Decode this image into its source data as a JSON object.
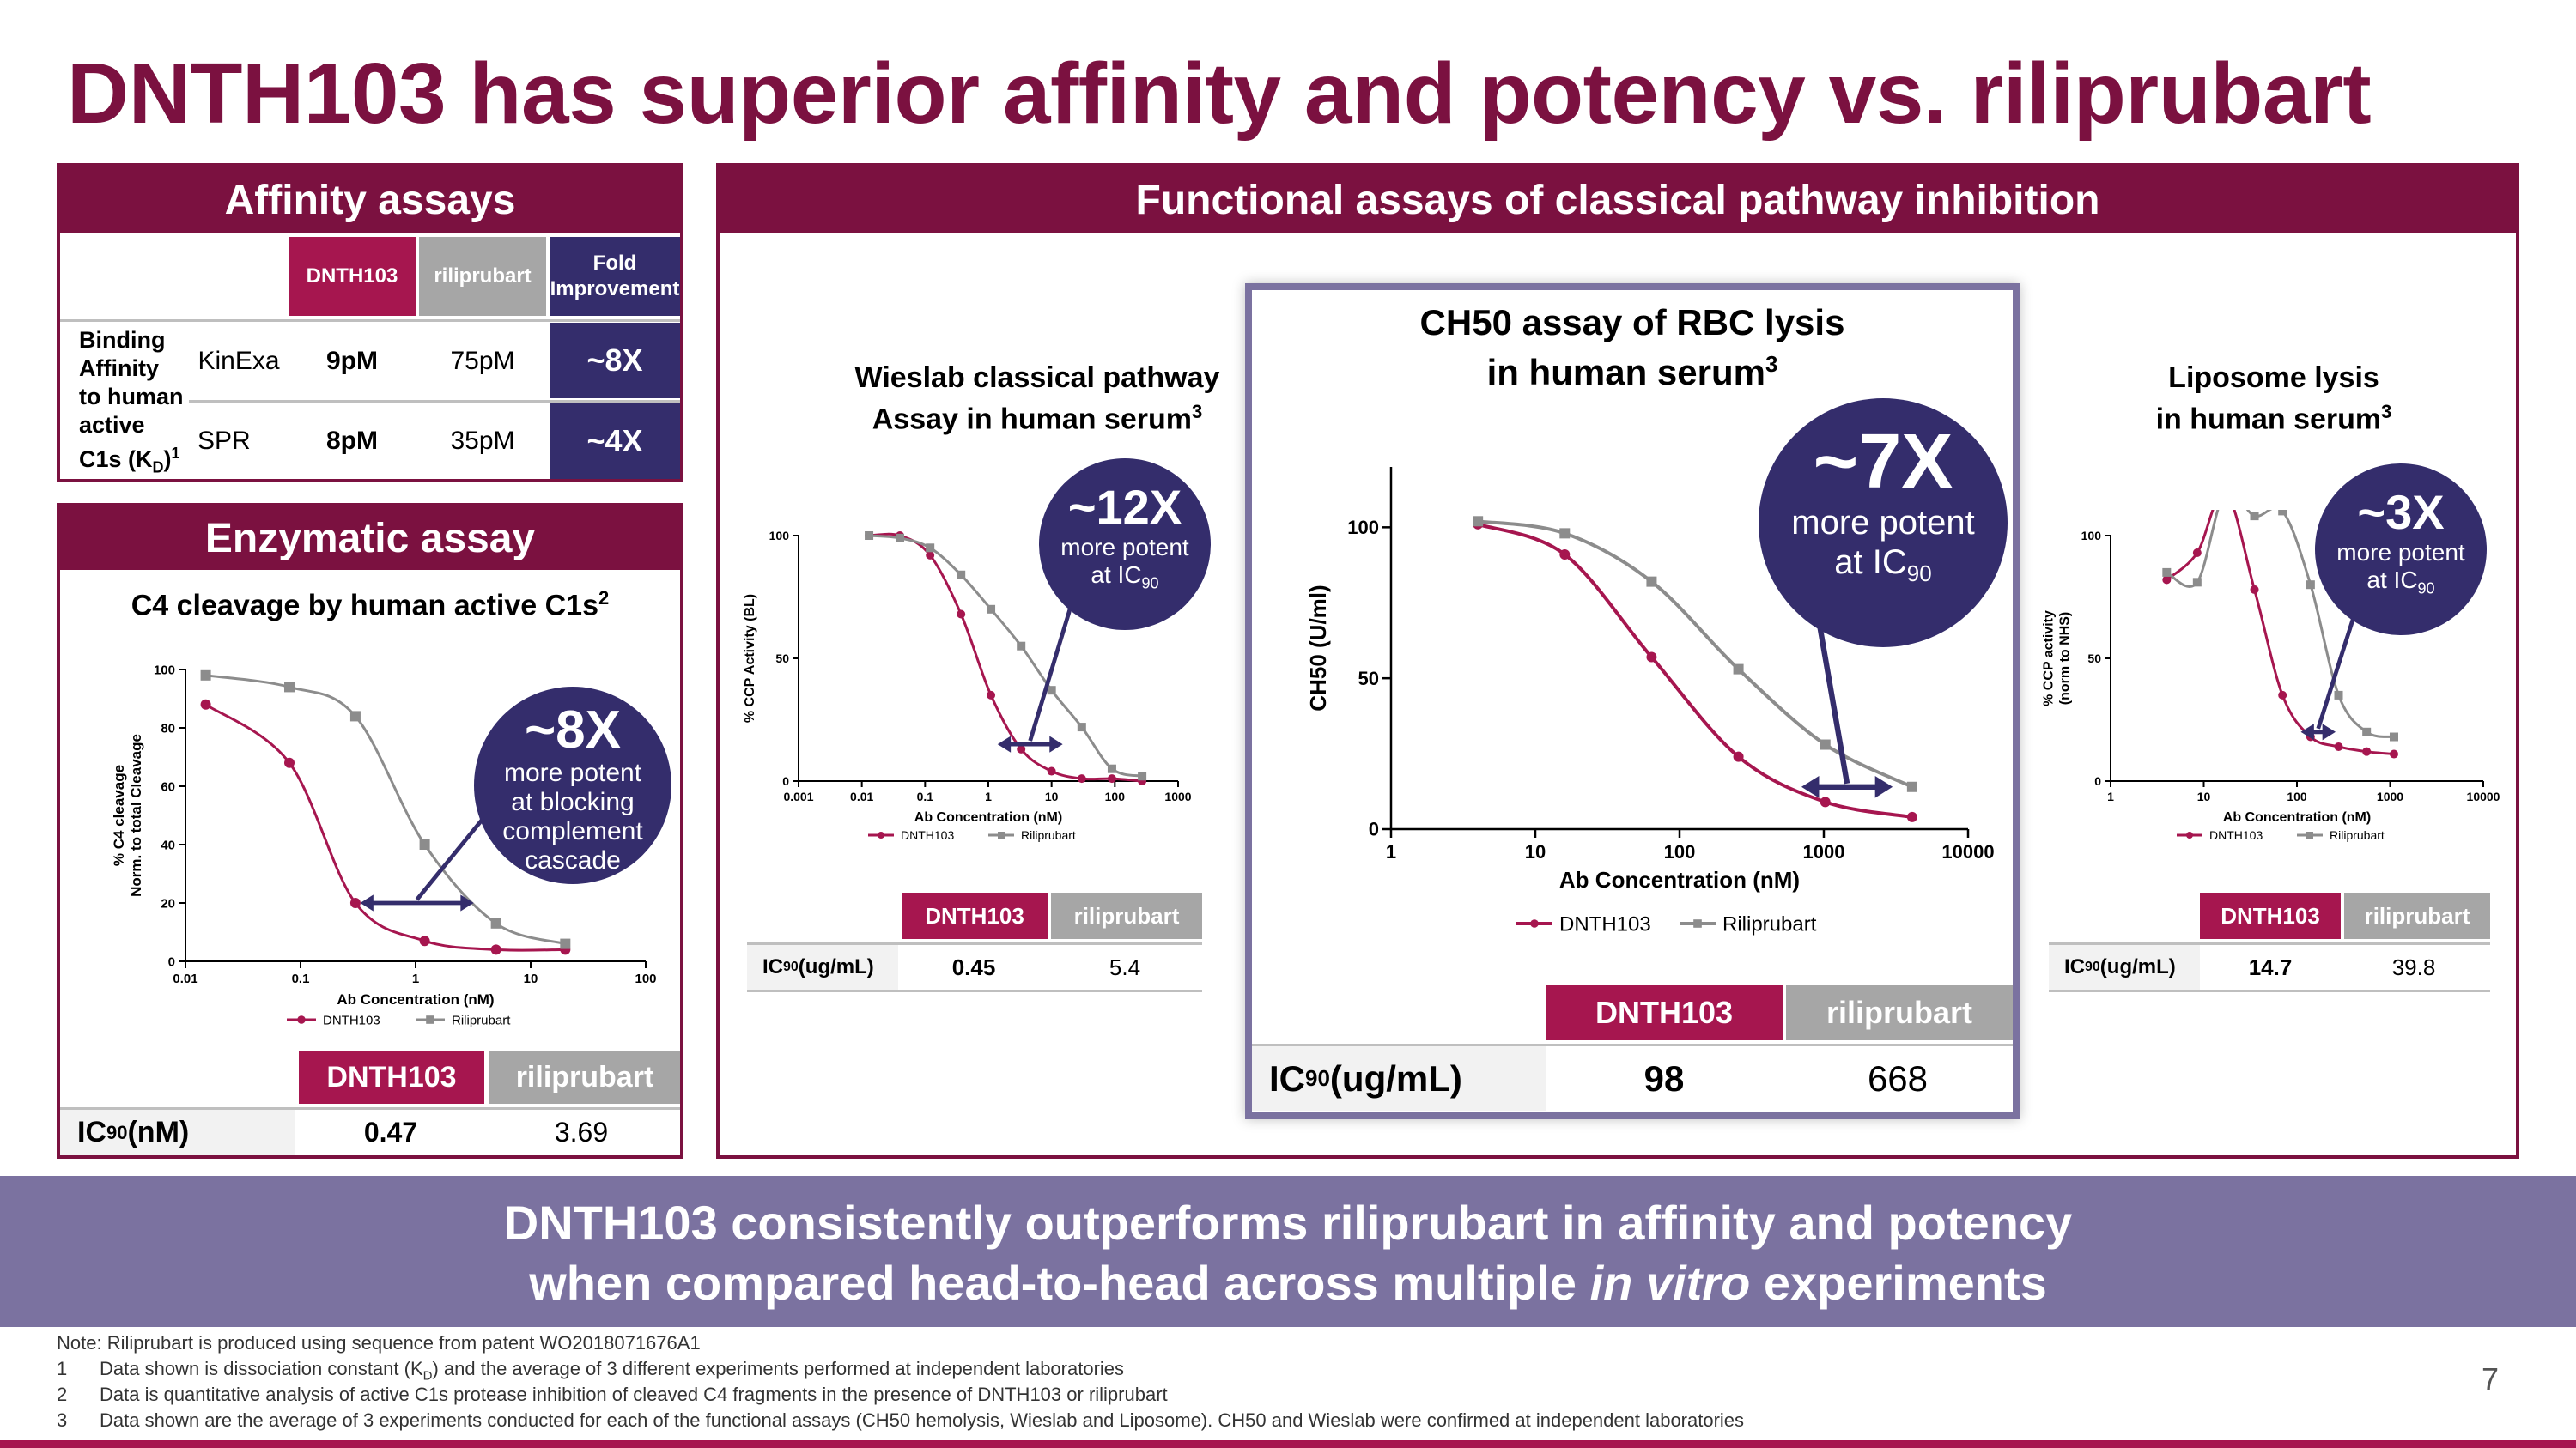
{
  "title": "DNTH103 has superior affinity and potency vs. riliprubart",
  "affinity": {
    "header": "Affinity assays",
    "col_dnth": "DNTH103",
    "col_rili": "riliprubart",
    "col_fold_1": "Fold",
    "col_fold_2": "Improvement",
    "row_label_lines": [
      "Binding",
      "Affinity",
      "to human",
      "active",
      "C1s (K"
    ],
    "row_label_sub": "D",
    "row_label_sup": "1",
    "row_label_close": ")",
    "rows": [
      {
        "method": "KinExa",
        "dnth": "9pM",
        "rili": "75pM",
        "fold": "~8X"
      },
      {
        "method": "SPR",
        "dnth": "8pM",
        "rili": "35pM",
        "fold": "~4X"
      }
    ]
  },
  "enzymatic": {
    "header": "Enzymatic assay",
    "subtitle": "C4 cleavage by human active C1s",
    "subtitle_sup": "2",
    "bubble_big": "~8X",
    "bubble_text": [
      "more potent",
      "at blocking",
      "complement",
      "cascade"
    ],
    "ic_label": "IC",
    "ic_sub": "90",
    "ic_unit": " (nM)",
    "col_dnth": "DNTH103",
    "col_rili": "riliprubart",
    "val_dnth": "0.47",
    "val_rili": "3.69"
  },
  "functional": {
    "header": "Functional assays of classical pathway inhibition",
    "wieslab": {
      "title_1": "Wieslab classical pathway",
      "title_2": "Assay in human serum",
      "title_sup": "3",
      "bubble_big": "~12X",
      "bubble_text_1": "more potent",
      "bubble_text_2": "at IC",
      "bubble_sub": "90",
      "ic_label": "IC",
      "ic_sub": "90",
      "ic_unit": " (ug/mL)",
      "col_dnth": "DNTH103",
      "col_rili": "riliprubart",
      "val_dnth": "0.45",
      "val_rili": "5.4"
    },
    "ch50": {
      "title_1": "CH50 assay of RBC lysis",
      "title_2": "in human serum",
      "title_sup": "3",
      "bubble_big": "~7X",
      "bubble_text_1": "more potent",
      "bubble_text_2": "at IC",
      "bubble_sub": "90",
      "ic_label": "IC",
      "ic_sub": "90",
      "ic_unit": " (ug/mL)",
      "col_dnth": "DNTH103",
      "col_rili": "riliprubart",
      "val_dnth": "98",
      "val_rili": "668"
    },
    "liposome": {
      "title_1": "Liposome lysis",
      "title_2": "in human serum",
      "title_sup": "3",
      "bubble_big": "~3X",
      "bubble_text_1": "more potent",
      "bubble_text_2": "at IC",
      "bubble_sub": "90",
      "ic_label": "IC",
      "ic_sub": "90",
      "ic_unit": " (ug/mL)",
      "col_dnth": "DNTH103",
      "col_rili": "riliprubart",
      "val_dnth": "14.7",
      "val_rili": "39.8"
    }
  },
  "banner": {
    "line1": "DNTH103 consistently outperforms riliprubart in affinity and potency",
    "line2_pre": "when compared head-to-head across multiple ",
    "line2_em": "in vitro",
    "line2_post": " experiments"
  },
  "footnotes": {
    "note": "Note: Riliprubart is produced using sequence from patent WO2018071676A1",
    "items": [
      {
        "num": "1",
        "pre": "Data shown is dissociation constant (K",
        "sub": "D",
        "post": ") and the average of 3 different experiments performed at independent laboratories"
      },
      {
        "num": "2",
        "pre": "Data is quantitative analysis of active C1s protease inhibition of cleaved C4 fragments in the presence of DNTH103 or riliprubart",
        "sub": "",
        "post": ""
      },
      {
        "num": "3",
        "pre": "Data shown are the average of 3 experiments conducted for each of the functional assays (CH50 hemolysis, Wieslab and Liposome). CH50 and Wieslab were confirmed at independent laboratories",
        "sub": "",
        "post": ""
      }
    ]
  },
  "page_number": "7",
  "colors": {
    "dnth": "#a6164f",
    "rili": "#8c8c8c",
    "maroon": "#7b1140",
    "navy": "#342d6c"
  },
  "chart_data": [
    {
      "id": "enzymatic",
      "type": "line",
      "xscale": "log",
      "xlim": [
        0.01,
        100
      ],
      "ylim": [
        0,
        100
      ],
      "xticks": [
        "0.01",
        "0.1",
        "1",
        "10",
        "100"
      ],
      "yticks": [
        "0",
        "20",
        "40",
        "60",
        "80",
        "100"
      ],
      "xlabel": "Ab Concentration (nM)",
      "ylabel_1": "% C4 cleavage",
      "ylabel_2": "Norm. to total Cleavage",
      "series": [
        {
          "name": "DNTH103",
          "x": [
            0.015,
            0.08,
            0.3,
            1.2,
            5,
            20
          ],
          "y": [
            88,
            68,
            20,
            7,
            4,
            4
          ]
        },
        {
          "name": "Riliprubart",
          "x": [
            0.015,
            0.08,
            0.3,
            1.2,
            5,
            20
          ],
          "y": [
            98,
            94,
            84,
            40,
            13,
            6
          ]
        }
      ]
    },
    {
      "id": "wieslab",
      "type": "line",
      "xscale": "log",
      "xlim": [
        0.001,
        1000
      ],
      "ylim": [
        0,
        100
      ],
      "xticks": [
        "0.001",
        "0.01",
        "0.1",
        "1",
        "10",
        "100",
        "1000"
      ],
      "yticks": [
        "0",
        "50",
        "100"
      ],
      "xlabel": "Ab Concentration (nM)",
      "ylabel": "% CCP Activity (BL)",
      "series": [
        {
          "name": "DNTH103",
          "x": [
            0.013,
            0.04,
            0.12,
            0.37,
            1.1,
            3.3,
            10,
            30,
            90,
            270
          ],
          "y": [
            100,
            100,
            92,
            68,
            35,
            13,
            4,
            1,
            1,
            0
          ]
        },
        {
          "name": "Riliprubart",
          "x": [
            0.013,
            0.04,
            0.12,
            0.37,
            1.1,
            3.3,
            10,
            30,
            90,
            270
          ],
          "y": [
            100,
            99,
            95,
            84,
            70,
            55,
            37,
            22,
            5,
            2
          ]
        }
      ]
    },
    {
      "id": "ch50",
      "type": "line",
      "xscale": "log",
      "xlim": [
        1,
        10000
      ],
      "ylim": [
        0,
        120
      ],
      "xticks": [
        "1",
        "10",
        "100",
        "1000",
        "10000"
      ],
      "yticks": [
        "0",
        "50",
        "100"
      ],
      "xlabel": "Ab Concentration (nM)",
      "ylabel": "CH50 (U/ml)",
      "series": [
        {
          "name": "DNTH103",
          "x": [
            4,
            16,
            64,
            256,
            1024,
            4096
          ],
          "y": [
            101,
            91,
            57,
            24,
            9,
            4
          ]
        },
        {
          "name": "Riliprubart",
          "x": [
            4,
            16,
            64,
            256,
            1024,
            4096
          ],
          "y": [
            102,
            98,
            82,
            53,
            28,
            14
          ]
        }
      ]
    },
    {
      "id": "liposome",
      "type": "line",
      "xscale": "log",
      "xlim": [
        1,
        10000
      ],
      "ylim": [
        0,
        100
      ],
      "xticks": [
        "1",
        "10",
        "100",
        "1000",
        "10000"
      ],
      "yticks": [
        "0",
        "50",
        "100"
      ],
      "xlabel": "Ab Concentration (nM)",
      "ylabel_1": "% CCP activity",
      "ylabel_2": "(norm to NHS)",
      "series": [
        {
          "name": "DNTH103",
          "x": [
            4,
            8.5,
            17,
            35,
            70,
            140,
            280,
            560,
            1100
          ],
          "y": [
            82,
            93,
            118,
            78,
            35,
            18,
            14,
            12,
            11
          ]
        },
        {
          "name": "Riliprubart",
          "x": [
            4,
            8.5,
            17,
            35,
            70,
            140,
            280,
            560,
            1100
          ],
          "y": [
            85,
            81,
            118,
            108,
            110,
            80,
            35,
            20,
            18
          ]
        }
      ]
    }
  ]
}
